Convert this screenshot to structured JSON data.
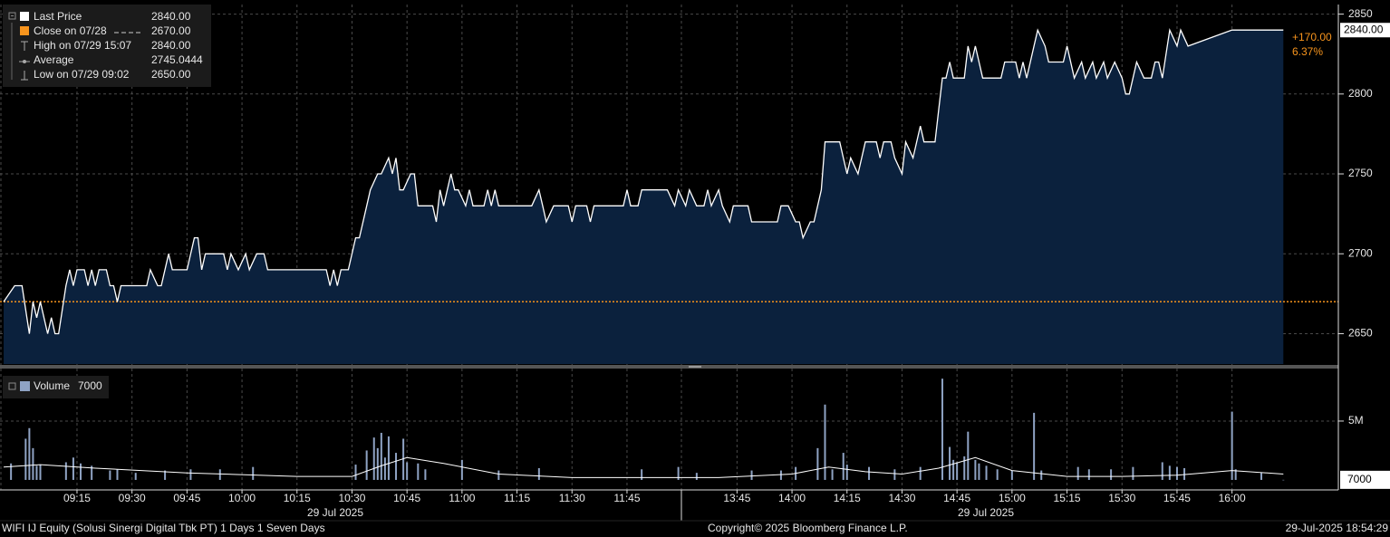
{
  "chart_data": [
    {
      "type": "line",
      "color": "#ffffff",
      "fill": "#0b213d",
      "x": [
        "08:55",
        "08:58",
        "09:00",
        "09:02",
        "09:03",
        "09:04",
        "09:05",
        "09:07",
        "09:08",
        "09:09",
        "09:10",
        "09:12",
        "09:13",
        "09:14",
        "09:15",
        "09:17",
        "09:18",
        "09:19",
        "09:20",
        "09:21",
        "09:23",
        "09:24",
        "09:25",
        "09:26",
        "09:27",
        "09:34",
        "09:35",
        "09:37",
        "09:38",
        "09:40",
        "09:41",
        "09:45",
        "09:47",
        "09:48",
        "09:49",
        "09:50",
        "09:55",
        "09:56",
        "09:57",
        "09:59",
        "10:01",
        "10:02",
        "10:04",
        "10:06",
        "10:07",
        "10:23",
        "10:24",
        "10:25",
        "10:26",
        "10:27",
        "10:29",
        "10:31",
        "10:32",
        "10:34",
        "10:35",
        "10:37",
        "10:38",
        "10:40",
        "10:41",
        "10:42",
        "10:43",
        "10:44",
        "10:46",
        "10:47",
        "10:48",
        "10:52",
        "10:53",
        "10:54",
        "10:55",
        "10:57",
        "10:58",
        "10:59",
        "11:01",
        "11:02",
        "11:03",
        "11:06",
        "11:07",
        "11:08",
        "11:09",
        "11:10",
        "11:19",
        "11:21",
        "11:22",
        "11:23",
        "11:25",
        "11:29",
        "11:30",
        "11:31",
        "11:34",
        "11:35",
        "11:36",
        "11:44",
        "11:45",
        "11:46",
        "11:48",
        "11:49",
        "11:56",
        "11:58",
        "11:59",
        "13:31",
        "13:32",
        "13:34",
        "13:36",
        "13:37",
        "13:38",
        "13:40",
        "13:41",
        "13:43",
        "13:44",
        "13:48",
        "13:49",
        "13:56",
        "13:57",
        "13:59",
        "14:01",
        "14:02",
        "14:03",
        "14:05",
        "14:06",
        "14:08",
        "14:09",
        "14:13",
        "14:14",
        "14:15",
        "14:16",
        "14:18",
        "14:20",
        "14:23",
        "14:24",
        "14:25",
        "14:27",
        "14:28",
        "14:30",
        "14:31",
        "14:33",
        "14:35",
        "14:36",
        "14:39",
        "14:40",
        "14:41",
        "14:42",
        "14:43",
        "14:44",
        "14:47",
        "14:48",
        "14:49",
        "14:50",
        "14:52",
        "14:57",
        "14:58",
        "15:01",
        "15:02",
        "15:03",
        "15:04",
        "15:06",
        "15:07",
        "15:09",
        "15:10",
        "15:14",
        "15:15",
        "15:17",
        "15:19",
        "15:20",
        "15:22",
        "15:23",
        "15:25",
        "15:26",
        "15:28",
        "15:30",
        "15:31",
        "15:32",
        "15:34",
        "15:36",
        "15:38",
        "15:39",
        "15:40",
        "15:41",
        "15:43",
        "15:45",
        "15:46",
        "15:48",
        "16:00",
        "16:14"
      ],
      "values": [
        2670,
        2680,
        2680,
        2650,
        2670,
        2660,
        2670,
        2650,
        2660,
        2650,
        2650,
        2680,
        2690,
        2680,
        2690,
        2690,
        2680,
        2690,
        2680,
        2690,
        2690,
        2680,
        2680,
        2670,
        2680,
        2680,
        2690,
        2680,
        2680,
        2700,
        2690,
        2690,
        2710,
        2710,
        2690,
        2700,
        2700,
        2690,
        2700,
        2690,
        2700,
        2690,
        2700,
        2700,
        2690,
        2690,
        2680,
        2690,
        2680,
        2690,
        2690,
        2710,
        2710,
        2730,
        2740,
        2750,
        2750,
        2760,
        2750,
        2760,
        2740,
        2740,
        2750,
        2750,
        2730,
        2730,
        2720,
        2740,
        2730,
        2750,
        2740,
        2740,
        2730,
        2740,
        2730,
        2730,
        2740,
        2730,
        2740,
        2730,
        2730,
        2740,
        2730,
        2720,
        2730,
        2730,
        2720,
        2730,
        2730,
        2720,
        2730,
        2730,
        2740,
        2730,
        2730,
        2740,
        2740,
        2730,
        2740,
        2730,
        2740,
        2730,
        2730,
        2740,
        2730,
        2740,
        2730,
        2720,
        2730,
        2730,
        2720,
        2720,
        2730,
        2730,
        2720,
        2720,
        2710,
        2720,
        2720,
        2740,
        2770,
        2770,
        2760,
        2750,
        2760,
        2750,
        2770,
        2770,
        2760,
        2770,
        2770,
        2760,
        2750,
        2770,
        2760,
        2780,
        2770,
        2770,
        2790,
        2810,
        2810,
        2820,
        2810,
        2810,
        2830,
        2820,
        2830,
        2810,
        2810,
        2820,
        2820,
        2810,
        2820,
        2810,
        2830,
        2840,
        2830,
        2820,
        2820,
        2830,
        2810,
        2820,
        2810,
        2820,
        2810,
        2820,
        2810,
        2820,
        2810,
        2800,
        2800,
        2820,
        2810,
        2810,
        2820,
        2820,
        2810,
        2840,
        2830,
        2840,
        2830,
        2840,
        2840
      ],
      "xlim": [
        "08:54",
        "16:29"
      ],
      "ylim": [
        2631,
        2856
      ],
      "yticks": [
        2650,
        2700,
        2750,
        2800,
        2850
      ],
      "grid": true,
      "legend": [
        {
          "name": "Last Price",
          "value": 2840,
          "label": "2840.00",
          "color": "#ffffff"
        },
        {
          "name": "Close on 07/28",
          "value": 2670,
          "label": "2670.00",
          "color": "#f7941d"
        },
        {
          "name": "High on 07/29 15:07",
          "value": 2840,
          "label": "2840.00"
        },
        {
          "name": "Average",
          "value": 2745.0444,
          "label": "2745.0444"
        },
        {
          "name": "Low on 07/29 09:02",
          "value": 2650,
          "label": "2650.00"
        }
      ],
      "change": {
        "value": 170,
        "label": "+170.00"
      },
      "change_pct": {
        "value": 6.37,
        "label": "6.37%"
      },
      "change_color": "#f7941d"
    },
    {
      "type": "bar",
      "name": "Volume",
      "last_value": 7000,
      "color": "#8fa3c4",
      "x": [
        "08:57",
        "09:01",
        "09:02",
        "09:03",
        "09:04",
        "09:05",
        "09:12",
        "09:14",
        "09:16",
        "09:19",
        "09:24",
        "09:26",
        "09:31",
        "09:39",
        "09:46",
        "09:54",
        "10:03",
        "10:31",
        "10:34",
        "10:36",
        "10:37",
        "10:38",
        "10:39",
        "10:40",
        "10:42",
        "10:44",
        "10:45",
        "10:48",
        "10:50",
        "11:00",
        "11:10",
        "11:21",
        "11:49",
        "11:59",
        "13:34",
        "13:49",
        "13:57",
        "14:01",
        "14:07",
        "14:09",
        "14:11",
        "14:14",
        "14:15",
        "14:21",
        "14:28",
        "14:35",
        "14:41",
        "14:43",
        "14:44",
        "14:45",
        "14:47",
        "14:48",
        "14:50",
        "14:51",
        "14:53",
        "14:56",
        "15:00",
        "15:06",
        "15:08",
        "15:18",
        "15:21",
        "15:27",
        "15:33",
        "15:41",
        "15:43",
        "15:45",
        "15:47",
        "16:00",
        "16:01",
        "16:08",
        "16:14"
      ],
      "values": [
        1400000,
        3500000,
        4400000,
        2700000,
        1200000,
        1300000,
        1500000,
        1900000,
        1400000,
        1200000,
        800000,
        900000,
        600000,
        800000,
        900000,
        900000,
        1100000,
        1300000,
        2500000,
        3600000,
        2700000,
        4000000,
        1900000,
        3700000,
        2300000,
        3500000,
        1500000,
        1400000,
        900000,
        1700000,
        800000,
        1000000,
        900000,
        1100000,
        600000,
        800000,
        800000,
        1100000,
        2700000,
        6400000,
        900000,
        2300000,
        1300000,
        1100000,
        900000,
        1100000,
        8600000,
        2800000,
        1700000,
        1500000,
        2000000,
        4100000,
        1700000,
        1400000,
        1200000,
        900000,
        800000,
        5700000,
        800000,
        1100000,
        900000,
        900000,
        1100000,
        1500000,
        1200000,
        1100000,
        1000000,
        5800000,
        900000,
        600000,
        7000
      ],
      "average": {
        "color": "#ffffff",
        "x": [
          "08:55",
          "09:05",
          "09:20",
          "09:45",
          "10:15",
          "10:30",
          "10:38",
          "10:45",
          "10:55",
          "11:10",
          "11:30",
          "11:59",
          "13:40",
          "14:00",
          "14:10",
          "14:20",
          "14:30",
          "14:40",
          "14:50",
          "15:00",
          "15:15",
          "15:30",
          "15:45",
          "16:00",
          "16:14"
        ],
        "values": [
          1100000,
          1300000,
          1000000,
          600000,
          300000,
          300000,
          1200000,
          1900000,
          1400000,
          500000,
          200000,
          200000,
          200000,
          500000,
          1100000,
          700000,
          500000,
          1000000,
          1900000,
          800000,
          300000,
          300000,
          400000,
          800000,
          500000
        ]
      },
      "xlim": [
        "08:54",
        "16:29"
      ],
      "xticks": [
        "09:15",
        "09:30",
        "09:45",
        "10:00",
        "10:15",
        "10:30",
        "10:45",
        "11:00",
        "11:15",
        "11:30",
        "11:45",
        "13:45",
        "14:00",
        "14:15",
        "14:30",
        "14:45",
        "15:00",
        "15:15",
        "15:30",
        "15:45",
        "16:00"
      ],
      "date_labels": [
        "29 Jul 2025",
        "29 Jul 2025"
      ],
      "ylim": [
        -850000,
        9460000
      ],
      "yticks": [
        {
          "value": 5000000,
          "label": "5M"
        }
      ],
      "grid": true
    }
  ],
  "footer": {
    "left": "WIFI IJ Equity (Solusi Sinergi Digital Tbk PT) 1 Days 1 Seven Days",
    "center": "Copyright© 2025 Bloomberg Finance L.P.",
    "right": "29-Jul-2025 18:54:29"
  }
}
